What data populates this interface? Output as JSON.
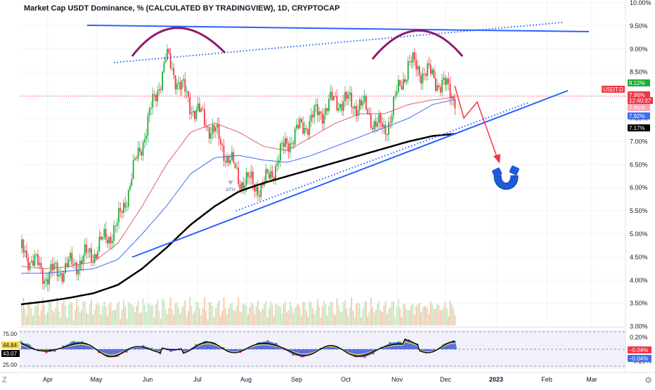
{
  "header": {
    "title": "Market Cap USDT Dominance, % (CALCULATED BY TRADINGVIEW), 1D, CRYPTOCAP"
  },
  "price_axis": {
    "ticks": [
      "10.00%",
      "9.50%",
      "9.00%",
      "8.50%",
      "8.00%",
      "7.50%",
      "7.00%",
      "6.50%",
      "6.00%",
      "5.50%",
      "5.00%",
      "4.50%",
      "4.00%",
      "3.50%",
      "3.00%"
    ],
    "tick_values": [
      10.0,
      9.5,
      9.0,
      8.5,
      8.0,
      7.5,
      7.0,
      6.5,
      6.0,
      5.5,
      5.0,
      4.5,
      4.0,
      3.5,
      3.0
    ]
  },
  "time_axis": {
    "labels": [
      "Apr",
      "May",
      "Jun",
      "Jul",
      "Aug",
      "Sep",
      "Oct",
      "Nov",
      "Dec",
      "2023",
      "Feb",
      "Mar"
    ]
  },
  "price_labels": [
    {
      "text": "8.12%",
      "color": "#22ab38",
      "value": 8.12
    },
    {
      "text": "USDT.D",
      "color": "#f23645"
    },
    {
      "text": "7.96%",
      "color": "#f23645",
      "value": 7.96
    },
    {
      "text": "12:40:37",
      "color": "#f23645"
    },
    {
      "text": "7.96%",
      "color": "#f7a5b5",
      "value": 7.96
    },
    {
      "text": "7.92%",
      "color": "#3d6cf0",
      "value": 7.92
    },
    {
      "text": "7.17%",
      "color": "#000000",
      "value": 7.17
    }
  ],
  "osc_axis": {
    "ticks": [
      "0.20%",
      "0.00%",
      "−0.20%"
    ],
    "tick_values": [
      0.2,
      0.0,
      -0.2
    ],
    "labels_left": [
      "75.00",
      "44.84",
      "43.07",
      "25.00"
    ],
    "values_right": [
      {
        "text": "−0.04%",
        "color": "#f23645"
      },
      {
        "text": "−0.04%",
        "color": "#3d6cf0"
      }
    ]
  },
  "annotations": {
    "label_ath": "ATH"
  },
  "controls": {
    "zoom_label": "Z",
    "settings_icon": "gear-icon"
  },
  "chart_data": {
    "type": "line",
    "title": "Market Cap USDT Dominance, % (CALCULATED BY TRADINGVIEW), 1D, CRYPTOCAP",
    "xlabel": "",
    "ylabel": "",
    "ylim": [
      3.0,
      10.0
    ],
    "x": [
      "Mar 20",
      "Apr 1",
      "Apr 15",
      "May 1",
      "May 15",
      "Jun 1",
      "Jun 15",
      "Jul 1",
      "Jul 15",
      "Aug 1",
      "Aug 15",
      "Sep 1",
      "Sep 15",
      "Oct 1",
      "Oct 15",
      "Nov 1",
      "Nov 15",
      "Dec 1",
      "Dec 5"
    ],
    "series": [
      {
        "name": "USDT.D",
        "color": "#22ab38",
        "values": [
          4.7,
          4.1,
          4.3,
          4.6,
          5.2,
          7.0,
          8.8,
          7.8,
          7.2,
          6.2,
          6.0,
          7.0,
          7.5,
          7.9,
          7.8,
          7.2,
          8.7,
          8.4,
          7.96
        ]
      },
      {
        "name": "MA 50",
        "color": "#e0606b",
        "values": [
          4.3,
          4.25,
          4.3,
          4.4,
          4.8,
          5.6,
          6.5,
          7.2,
          7.4,
          7.2,
          6.9,
          6.8,
          7.1,
          7.4,
          7.6,
          7.6,
          7.8,
          7.9,
          7.96
        ]
      },
      {
        "name": "MA 100",
        "color": "#3d6cf0",
        "values": [
          4.15,
          4.15,
          4.2,
          4.25,
          4.45,
          5.0,
          5.6,
          6.3,
          6.65,
          6.7,
          6.6,
          6.55,
          6.7,
          6.9,
          7.1,
          7.3,
          7.5,
          7.8,
          7.92
        ]
      },
      {
        "name": "MA 200",
        "color": "#000000",
        "values": [
          3.48,
          3.54,
          3.62,
          3.72,
          3.9,
          4.25,
          4.7,
          5.2,
          5.6,
          5.92,
          6.1,
          6.25,
          6.4,
          6.55,
          6.7,
          6.85,
          7.0,
          7.12,
          7.17
        ]
      }
    ],
    "grid": true
  }
}
